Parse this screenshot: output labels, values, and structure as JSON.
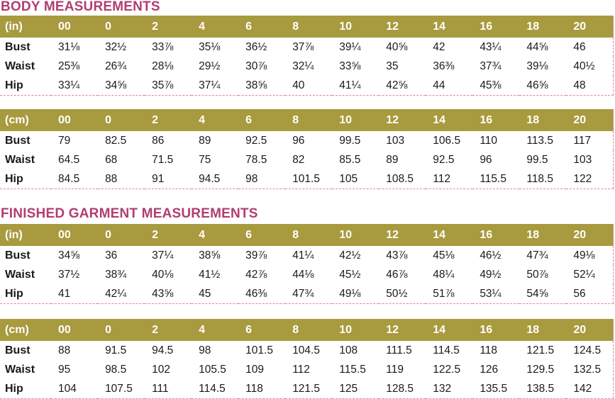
{
  "sizes": [
    "00",
    "0",
    "2",
    "4",
    "6",
    "8",
    "10",
    "12",
    "14",
    "16",
    "18",
    "20"
  ],
  "sections": [
    {
      "title": "BODY MEASUREMENTS",
      "tables": [
        {
          "unit": "(in)",
          "rows": [
            {
              "label": "Bust",
              "values": [
                "31⅛",
                "32½",
                "33⅞",
                "35⅛",
                "36½",
                "37⅞",
                "39¼",
                "40⅝",
                "42",
                "43¼",
                "44⅝",
                "46"
              ]
            },
            {
              "label": "Waist",
              "values": [
                "25⅜",
                "26¾",
                "28⅛",
                "29½",
                "30⅞",
                "32¼",
                "33⅝",
                "35",
                "36⅜",
                "37¾",
                "39⅛",
                "40½"
              ]
            },
            {
              "label": "Hip",
              "values": [
                "33¼",
                "34⅝",
                "35⅞",
                "37¼",
                "38⅝",
                "40",
                "41¼",
                "42⅝",
                "44",
                "45⅜",
                "46⅝",
                "48"
              ]
            }
          ]
        },
        {
          "unit": "(cm)",
          "rows": [
            {
              "label": "Bust",
              "values": [
                "79",
                "82.5",
                "86",
                "89",
                "92.5",
                "96",
                "99.5",
                "103",
                "106.5",
                "110",
                "113.5",
                "117"
              ]
            },
            {
              "label": "Waist",
              "values": [
                "64.5",
                "68",
                "71.5",
                "75",
                "78.5",
                "82",
                "85.5",
                "89",
                "92.5",
                "96",
                "99.5",
                "103"
              ]
            },
            {
              "label": "Hip",
              "values": [
                "84.5",
                "88",
                "91",
                "94.5",
                "98",
                "101.5",
                "105",
                "108.5",
                "112",
                "115.5",
                "118.5",
                "122"
              ]
            }
          ]
        }
      ]
    },
    {
      "title": "FINISHED GARMENT MEASUREMENTS",
      "tables": [
        {
          "unit": "(in)",
          "rows": [
            {
              "label": "Bust",
              "values": [
                "34⅝",
                "36",
                "37¼",
                "38⅝",
                "39⅞",
                "41¼",
                "42½",
                "43⅞",
                "45⅛",
                "46½",
                "47¾",
                "49⅛"
              ]
            },
            {
              "label": "Waist",
              "values": [
                "37½",
                "38¾",
                "40⅛",
                "41½",
                "42⅞",
                "44⅛",
                "45½",
                "46⅞",
                "48¼",
                "49½",
                "50⅞",
                "52¼"
              ]
            },
            {
              "label": "Hip",
              "values": [
                "41",
                "42¼",
                "43⅝",
                "45",
                "46⅜",
                "47¾",
                "49⅛",
                "50½",
                "51⅞",
                "53¼",
                "54⅝",
                "56"
              ]
            }
          ]
        },
        {
          "unit": "(cm)",
          "rows": [
            {
              "label": "Bust",
              "values": [
                "88",
                "91.5",
                "94.5",
                "98",
                "101.5",
                "104.5",
                "108",
                "111.5",
                "114.5",
                "118",
                "121.5",
                "124.5"
              ]
            },
            {
              "label": "Waist",
              "values": [
                "95",
                "98.5",
                "102",
                "105.5",
                "109",
                "112",
                "115.5",
                "119",
                "122.5",
                "126",
                "129.5",
                "132.5"
              ]
            },
            {
              "label": "Hip",
              "values": [
                "104",
                "107.5",
                "111",
                "114.5",
                "118",
                "121.5",
                "125",
                "128.5",
                "132",
                "135.5",
                "138.5",
                "142"
              ]
            }
          ]
        }
      ]
    }
  ],
  "colors": {
    "title": "#b23d70",
    "header_band": "#a89a3e",
    "header_text": "#ffffff",
    "dashed_border": "#d48aad"
  }
}
